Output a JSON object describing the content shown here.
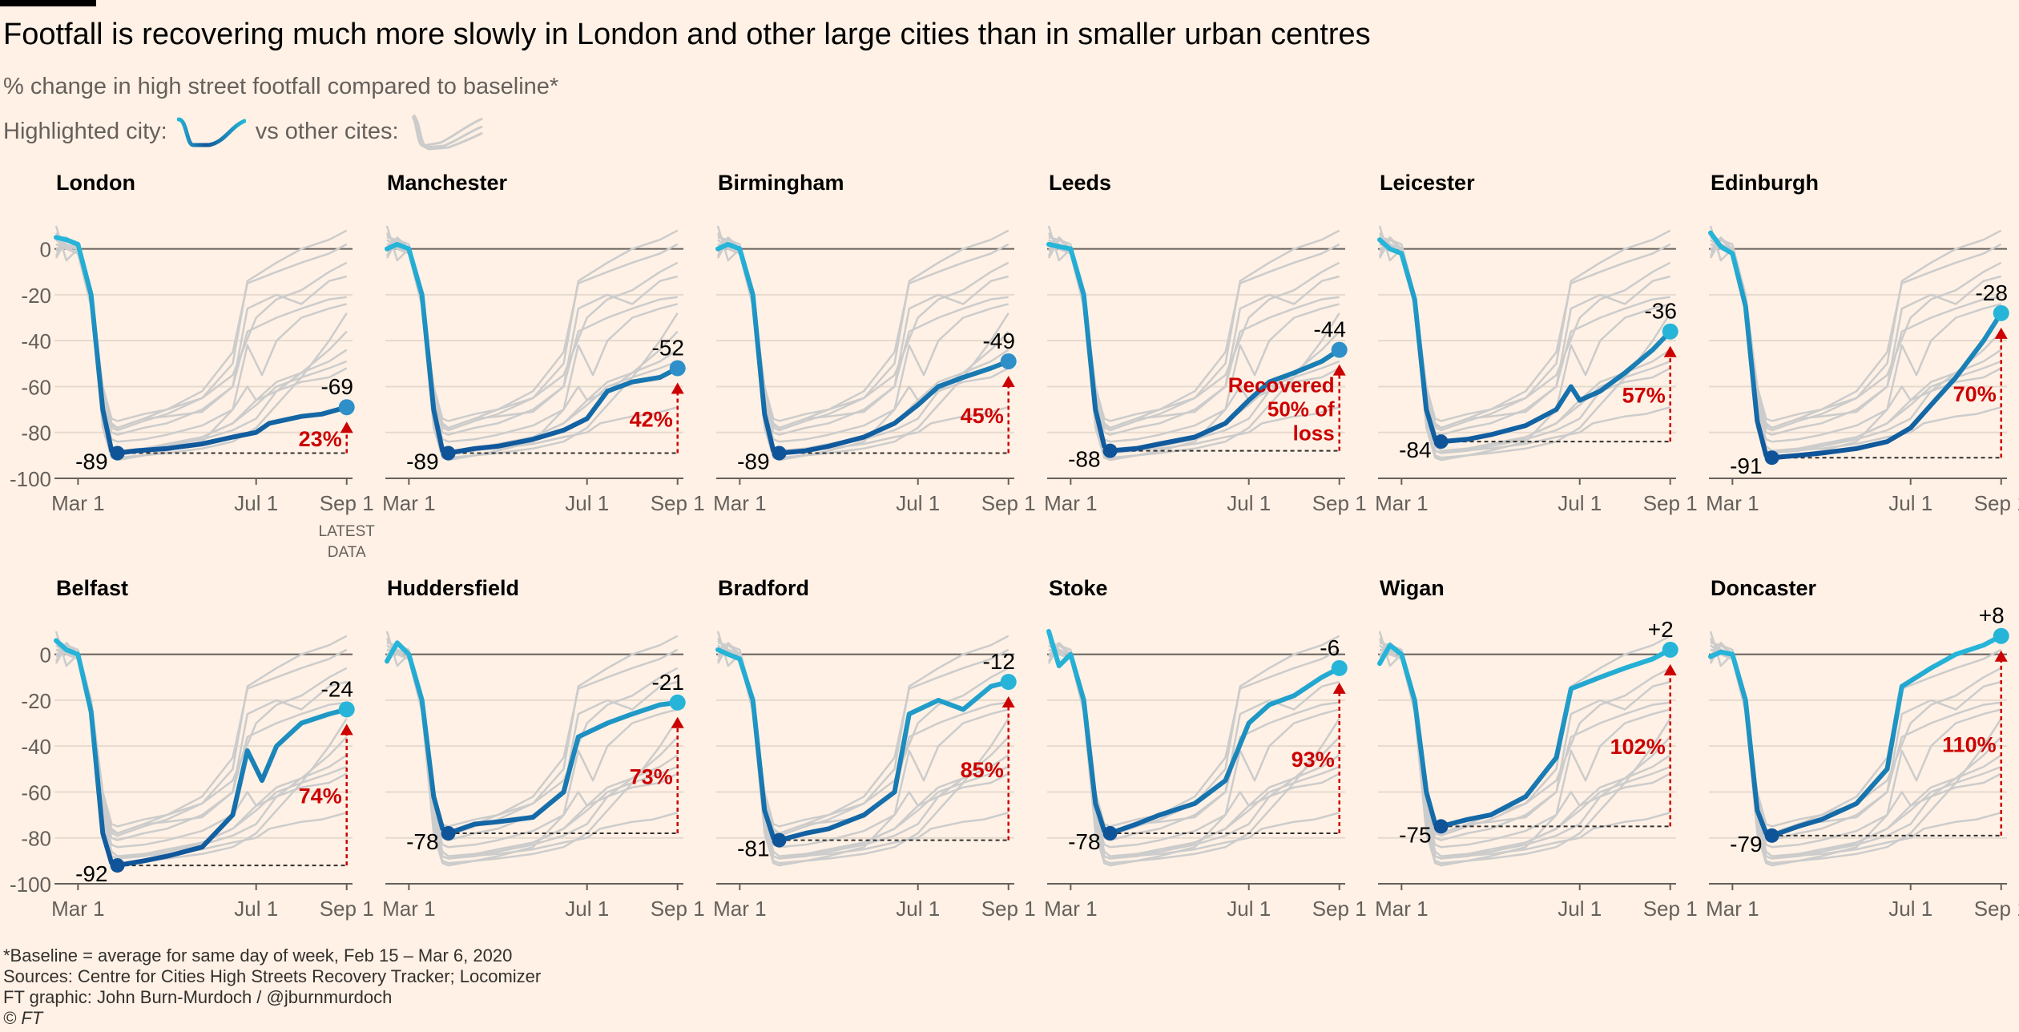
{
  "header": {
    "title": "Footfall is recovering much more slowly in London and other large cities than in smaller urban centres",
    "subtitle": "% change in high street footfall compared to baseline*",
    "legend_highlight_label": "Highlighted city:",
    "legend_others_label": "vs other cites:"
  },
  "colors": {
    "background": "#fff1e5",
    "highlight_dark": "#0f5499",
    "highlight_light": "#26b5d9",
    "others": "#cccccc",
    "annotation_red": "#cc0000",
    "axis": "#66605c"
  },
  "chart_data": {
    "type": "line",
    "ylim": [
      -100,
      10
    ],
    "yticks": [
      "0",
      "-20",
      "-40",
      "-60",
      "-80",
      "-100"
    ],
    "xlim": [
      "2020-02-15",
      "2020-09-05"
    ],
    "xticks": [
      {
        "date": "2020-03-01",
        "label": "Mar 1"
      },
      {
        "date": "2020-07-01",
        "label": "Jul 1"
      },
      {
        "date": "2020-09-01",
        "label": "Sep 1"
      }
    ],
    "latest_data_note": "LATEST DATA",
    "cities": [
      {
        "name": "London",
        "min": -89,
        "min_date": "2020-03-28",
        "latest": -69,
        "latest_label": "-69",
        "latest_date": "2020-09-01",
        "recovered_label": "23%",
        "line": [
          [
            "2020-02-15",
            5
          ],
          [
            "2020-02-22",
            4
          ],
          [
            "2020-03-01",
            2
          ],
          [
            "2020-03-10",
            -20
          ],
          [
            "2020-03-18",
            -70
          ],
          [
            "2020-03-24",
            -88
          ],
          [
            "2020-03-28",
            -89
          ],
          [
            "2020-04-10",
            -88
          ],
          [
            "2020-05-01",
            -87
          ],
          [
            "2020-05-25",
            -85
          ],
          [
            "2020-06-15",
            -82
          ],
          [
            "2020-07-01",
            -80
          ],
          [
            "2020-07-10",
            -76
          ],
          [
            "2020-08-01",
            -73
          ],
          [
            "2020-08-15",
            -72
          ],
          [
            "2020-09-01",
            -69
          ]
        ]
      },
      {
        "name": "Manchester",
        "min": -89,
        "min_date": "2020-03-28",
        "latest": -52,
        "latest_label": "-52",
        "latest_date": "2020-09-01",
        "recovered_label": "42%",
        "line": [
          [
            "2020-02-15",
            0
          ],
          [
            "2020-02-22",
            2
          ],
          [
            "2020-03-01",
            0
          ],
          [
            "2020-03-10",
            -20
          ],
          [
            "2020-03-18",
            -70
          ],
          [
            "2020-03-24",
            -88
          ],
          [
            "2020-03-28",
            -89
          ],
          [
            "2020-04-15",
            -87
          ],
          [
            "2020-05-01",
            -86
          ],
          [
            "2020-05-25",
            -83
          ],
          [
            "2020-06-15",
            -79
          ],
          [
            "2020-07-01",
            -74
          ],
          [
            "2020-07-15",
            -62
          ],
          [
            "2020-08-01",
            -58
          ],
          [
            "2020-08-20",
            -56
          ],
          [
            "2020-09-01",
            -52
          ]
        ]
      },
      {
        "name": "Birmingham",
        "min": -89,
        "min_date": "2020-03-28",
        "latest": -49,
        "latest_label": "-49",
        "latest_date": "2020-09-01",
        "recovered_label": "45%",
        "line": [
          [
            "2020-02-15",
            0
          ],
          [
            "2020-02-22",
            2
          ],
          [
            "2020-03-01",
            0
          ],
          [
            "2020-03-10",
            -20
          ],
          [
            "2020-03-18",
            -72
          ],
          [
            "2020-03-24",
            -88
          ],
          [
            "2020-03-28",
            -89
          ],
          [
            "2020-04-15",
            -88
          ],
          [
            "2020-05-01",
            -86
          ],
          [
            "2020-05-25",
            -82
          ],
          [
            "2020-06-15",
            -76
          ],
          [
            "2020-07-01",
            -68
          ],
          [
            "2020-07-15",
            -60
          ],
          [
            "2020-08-01",
            -56
          ],
          [
            "2020-08-20",
            -52
          ],
          [
            "2020-09-01",
            -49
          ]
        ]
      },
      {
        "name": "Leeds",
        "min": -88,
        "min_date": "2020-03-28",
        "latest": -44,
        "latest_label": "-44",
        "latest_date": "2020-09-01",
        "recovered_label": "Recovered 50% of loss",
        "line": [
          [
            "2020-02-15",
            2
          ],
          [
            "2020-02-22",
            1
          ],
          [
            "2020-03-01",
            0
          ],
          [
            "2020-03-10",
            -20
          ],
          [
            "2020-03-18",
            -70
          ],
          [
            "2020-03-24",
            -86
          ],
          [
            "2020-03-28",
            -88
          ],
          [
            "2020-04-15",
            -87
          ],
          [
            "2020-05-01",
            -85
          ],
          [
            "2020-05-25",
            -82
          ],
          [
            "2020-06-15",
            -76
          ],
          [
            "2020-07-01",
            -66
          ],
          [
            "2020-07-15",
            -58
          ],
          [
            "2020-08-01",
            -54
          ],
          [
            "2020-08-20",
            -49
          ],
          [
            "2020-09-01",
            -44
          ]
        ]
      },
      {
        "name": "Leicester",
        "min": -84,
        "min_date": "2020-03-28",
        "latest": -36,
        "latest_label": "-36",
        "latest_date": "2020-09-01",
        "recovered_label": "57%",
        "line": [
          [
            "2020-02-15",
            4
          ],
          [
            "2020-02-22",
            0
          ],
          [
            "2020-03-01",
            -2
          ],
          [
            "2020-03-10",
            -22
          ],
          [
            "2020-03-18",
            -70
          ],
          [
            "2020-03-24",
            -83
          ],
          [
            "2020-03-28",
            -84
          ],
          [
            "2020-04-15",
            -83
          ],
          [
            "2020-05-01",
            -81
          ],
          [
            "2020-05-25",
            -77
          ],
          [
            "2020-06-15",
            -70
          ],
          [
            "2020-06-25",
            -60
          ],
          [
            "2020-07-01",
            -66
          ],
          [
            "2020-07-15",
            -62
          ],
          [
            "2020-08-01",
            -54
          ],
          [
            "2020-08-20",
            -44
          ],
          [
            "2020-09-01",
            -36
          ]
        ]
      },
      {
        "name": "Edinburgh",
        "min": -91,
        "min_date": "2020-03-28",
        "latest": -28,
        "latest_label": "-28",
        "latest_date": "2020-09-01",
        "recovered_label": "70%",
        "line": [
          [
            "2020-02-15",
            7
          ],
          [
            "2020-02-22",
            1
          ],
          [
            "2020-03-01",
            -2
          ],
          [
            "2020-03-10",
            -25
          ],
          [
            "2020-03-18",
            -75
          ],
          [
            "2020-03-24",
            -90
          ],
          [
            "2020-03-28",
            -91
          ],
          [
            "2020-04-15",
            -90
          ],
          [
            "2020-05-01",
            -89
          ],
          [
            "2020-05-25",
            -87
          ],
          [
            "2020-06-15",
            -84
          ],
          [
            "2020-07-01",
            -78
          ],
          [
            "2020-07-15",
            -68
          ],
          [
            "2020-08-01",
            -56
          ],
          [
            "2020-08-20",
            -40
          ],
          [
            "2020-09-01",
            -28
          ]
        ]
      },
      {
        "name": "Belfast",
        "min": -92,
        "min_date": "2020-03-28",
        "latest": -24,
        "latest_label": "-24",
        "latest_date": "2020-09-01",
        "recovered_label": "74%",
        "line": [
          [
            "2020-02-15",
            6
          ],
          [
            "2020-02-22",
            2
          ],
          [
            "2020-03-01",
            0
          ],
          [
            "2020-03-10",
            -25
          ],
          [
            "2020-03-18",
            -78
          ],
          [
            "2020-03-24",
            -91
          ],
          [
            "2020-03-28",
            -92
          ],
          [
            "2020-04-15",
            -90
          ],
          [
            "2020-05-01",
            -88
          ],
          [
            "2020-05-25",
            -84
          ],
          [
            "2020-06-15",
            -70
          ],
          [
            "2020-06-25",
            -42
          ],
          [
            "2020-07-05",
            -55
          ],
          [
            "2020-07-15",
            -40
          ],
          [
            "2020-08-01",
            -30
          ],
          [
            "2020-08-20",
            -26
          ],
          [
            "2020-09-01",
            -24
          ]
        ]
      },
      {
        "name": "Huddersfield",
        "min": -78,
        "min_date": "2020-03-28",
        "latest": -21,
        "latest_label": "-21",
        "latest_date": "2020-09-01",
        "recovered_label": "73%",
        "line": [
          [
            "2020-02-15",
            -3
          ],
          [
            "2020-02-22",
            5
          ],
          [
            "2020-03-01",
            0
          ],
          [
            "2020-03-10",
            -20
          ],
          [
            "2020-03-18",
            -62
          ],
          [
            "2020-03-24",
            -76
          ],
          [
            "2020-03-28",
            -78
          ],
          [
            "2020-04-15",
            -74
          ],
          [
            "2020-05-01",
            -73
          ],
          [
            "2020-05-25",
            -71
          ],
          [
            "2020-06-15",
            -60
          ],
          [
            "2020-06-25",
            -36
          ],
          [
            "2020-07-15",
            -30
          ],
          [
            "2020-08-01",
            -26
          ],
          [
            "2020-08-20",
            -22
          ],
          [
            "2020-09-01",
            -21
          ]
        ]
      },
      {
        "name": "Bradford",
        "min": -81,
        "min_date": "2020-03-28",
        "latest": -12,
        "latest_label": "-12",
        "latest_date": "2020-09-01",
        "recovered_label": "85%",
        "line": [
          [
            "2020-02-15",
            2
          ],
          [
            "2020-02-22",
            0
          ],
          [
            "2020-03-01",
            -2
          ],
          [
            "2020-03-10",
            -20
          ],
          [
            "2020-03-18",
            -68
          ],
          [
            "2020-03-24",
            -80
          ],
          [
            "2020-03-28",
            -81
          ],
          [
            "2020-04-15",
            -78
          ],
          [
            "2020-05-01",
            -76
          ],
          [
            "2020-05-25",
            -70
          ],
          [
            "2020-06-15",
            -60
          ],
          [
            "2020-06-25",
            -26
          ],
          [
            "2020-07-15",
            -20
          ],
          [
            "2020-08-01",
            -24
          ],
          [
            "2020-08-20",
            -14
          ],
          [
            "2020-09-01",
            -12
          ]
        ]
      },
      {
        "name": "Stoke",
        "min": -78,
        "min_date": "2020-03-28",
        "latest": -6,
        "latest_label": "-6",
        "latest_date": "2020-09-01",
        "recovered_label": "93%",
        "line": [
          [
            "2020-02-15",
            10
          ],
          [
            "2020-02-22",
            -5
          ],
          [
            "2020-03-01",
            0
          ],
          [
            "2020-03-10",
            -20
          ],
          [
            "2020-03-18",
            -65
          ],
          [
            "2020-03-24",
            -77
          ],
          [
            "2020-03-28",
            -78
          ],
          [
            "2020-04-15",
            -74
          ],
          [
            "2020-05-01",
            -70
          ],
          [
            "2020-05-25",
            -65
          ],
          [
            "2020-06-15",
            -55
          ],
          [
            "2020-07-01",
            -30
          ],
          [
            "2020-07-15",
            -22
          ],
          [
            "2020-08-01",
            -18
          ],
          [
            "2020-08-20",
            -10
          ],
          [
            "2020-09-01",
            -6
          ]
        ]
      },
      {
        "name": "Wigan",
        "min": -75,
        "min_date": "2020-03-28",
        "latest": 2,
        "latest_label": "+2",
        "latest_date": "2020-09-01",
        "recovered_label": "102%",
        "line": [
          [
            "2020-02-15",
            -4
          ],
          [
            "2020-02-22",
            4
          ],
          [
            "2020-03-01",
            0
          ],
          [
            "2020-03-10",
            -20
          ],
          [
            "2020-03-18",
            -60
          ],
          [
            "2020-03-24",
            -74
          ],
          [
            "2020-03-28",
            -75
          ],
          [
            "2020-04-15",
            -72
          ],
          [
            "2020-05-01",
            -70
          ],
          [
            "2020-05-25",
            -62
          ],
          [
            "2020-06-15",
            -45
          ],
          [
            "2020-06-25",
            -15
          ],
          [
            "2020-07-15",
            -10
          ],
          [
            "2020-08-01",
            -6
          ],
          [
            "2020-08-20",
            -2
          ],
          [
            "2020-09-01",
            2
          ]
        ]
      },
      {
        "name": "Doncaster",
        "min": -79,
        "min_date": "2020-03-28",
        "latest": 8,
        "latest_label": "+8",
        "latest_date": "2020-09-01",
        "recovered_label": "110%",
        "line": [
          [
            "2020-02-15",
            -1
          ],
          [
            "2020-02-22",
            1
          ],
          [
            "2020-03-01",
            0
          ],
          [
            "2020-03-10",
            -20
          ],
          [
            "2020-03-18",
            -68
          ],
          [
            "2020-03-24",
            -78
          ],
          [
            "2020-03-28",
            -79
          ],
          [
            "2020-04-15",
            -75
          ],
          [
            "2020-05-01",
            -72
          ],
          [
            "2020-05-25",
            -65
          ],
          [
            "2020-06-15",
            -50
          ],
          [
            "2020-06-25",
            -14
          ],
          [
            "2020-07-15",
            -6
          ],
          [
            "2020-08-01",
            0
          ],
          [
            "2020-08-20",
            4
          ],
          [
            "2020-09-01",
            8
          ]
        ]
      }
    ]
  },
  "footer": {
    "note": "*Baseline = average for same day of week, Feb 15 – Mar 6, 2020",
    "sources": "Sources: Centre for Cities High Streets Recovery Tracker; Locomizer",
    "credit": "FT graphic: John Burn-Murdoch / @jburnmurdoch",
    "copyright": "© FT"
  }
}
